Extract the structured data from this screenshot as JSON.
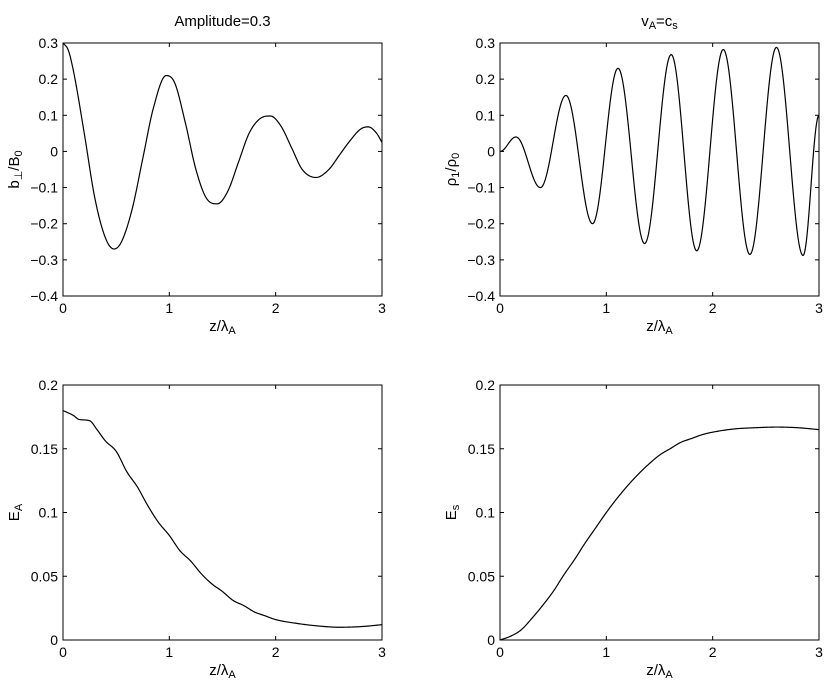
{
  "chart_data": [
    {
      "type": "line",
      "panel": "top-left",
      "title": "Amplitude=0.3",
      "xlabel": {
        "base": "z/λ",
        "sub": "A"
      },
      "ylabel": {
        "parts": [
          {
            "t": "b"
          },
          {
            "t": "⊥",
            "sub": true
          },
          {
            "t": "/B"
          },
          {
            "t": "0",
            "sub": true
          }
        ]
      },
      "xlim": [
        0,
        3
      ],
      "ylim": [
        -0.4,
        0.3
      ],
      "xticks": [
        0,
        1,
        2,
        3
      ],
      "yticks": [
        -0.4,
        -0.3,
        -0.2,
        -0.1,
        0,
        0.1,
        0.2,
        0.3
      ],
      "xtick_labels": [
        "0",
        "1",
        "2",
        "3"
      ],
      "ytick_labels": [
        "−0.4",
        "−0.3",
        "−0.2",
        "−0.1",
        "0",
        "0.1",
        "0.2",
        "0.3"
      ],
      "series": [
        {
          "x": [
            0,
            0.05,
            0.1,
            0.2,
            0.3,
            0.4,
            0.48,
            0.55,
            0.65,
            0.75,
            0.85,
            0.97,
            1.05,
            1.15,
            1.25,
            1.35,
            1.45,
            1.55,
            1.65,
            1.75,
            1.85,
            1.95,
            2.05,
            2.15,
            2.25,
            2.38,
            2.5,
            2.6,
            2.7,
            2.8,
            2.87,
            2.95,
            3.0
          ],
          "y": [
            0.3,
            0.28,
            0.22,
            0.05,
            -0.13,
            -0.24,
            -0.27,
            -0.25,
            -0.16,
            -0.02,
            0.12,
            0.21,
            0.19,
            0.08,
            -0.05,
            -0.13,
            -0.145,
            -0.11,
            -0.03,
            0.05,
            0.09,
            0.098,
            0.07,
            0.01,
            -0.05,
            -0.072,
            -0.05,
            -0.01,
            0.03,
            0.062,
            0.068,
            0.05,
            0.025
          ]
        }
      ]
    },
    {
      "type": "line",
      "panel": "top-right",
      "title": {
        "parts": [
          {
            "t": "v"
          },
          {
            "t": "A",
            "sub": true
          },
          {
            "t": "=c"
          },
          {
            "t": "s",
            "sub": true
          }
        ]
      },
      "xlabel": {
        "base": "z/λ",
        "sub": "A"
      },
      "ylabel": {
        "parts": [
          {
            "t": "ρ"
          },
          {
            "t": "1",
            "sub": true
          },
          {
            "t": "/ρ"
          },
          {
            "t": "0",
            "sub": true
          }
        ]
      },
      "xlim": [
        0,
        3
      ],
      "ylim": [
        -0.4,
        0.3
      ],
      "xticks": [
        0,
        1,
        2,
        3
      ],
      "yticks": [
        -0.4,
        -0.3,
        -0.2,
        -0.1,
        0,
        0.1,
        0.2,
        0.3
      ],
      "xtick_labels": [
        "0",
        "1",
        "2",
        "3"
      ],
      "ytick_labels": [
        "−0.4",
        "−0.3",
        "−0.2",
        "−0.1",
        "0",
        "0.1",
        "0.2",
        "0.3"
      ],
      "extrema": [
        [
          0.0,
          0.0
        ],
        [
          0.15,
          0.04
        ],
        [
          0.38,
          -0.1
        ],
        [
          0.62,
          0.155
        ],
        [
          0.87,
          -0.2
        ],
        [
          1.11,
          0.23
        ],
        [
          1.36,
          -0.255
        ],
        [
          1.61,
          0.268
        ],
        [
          1.85,
          -0.275
        ],
        [
          2.1,
          0.282
        ],
        [
          2.35,
          -0.285
        ],
        [
          2.6,
          0.288
        ],
        [
          2.85,
          -0.288
        ],
        [
          3.0,
          0.1
        ]
      ]
    },
    {
      "type": "line",
      "panel": "bottom-left",
      "title": "",
      "xlabel": {
        "base": "z/λ",
        "sub": "A"
      },
      "ylabel": {
        "parts": [
          {
            "t": "E"
          },
          {
            "t": "A",
            "sub": true
          }
        ]
      },
      "xlim": [
        0,
        3
      ],
      "ylim": [
        0,
        0.2
      ],
      "xticks": [
        0,
        1,
        2,
        3
      ],
      "yticks": [
        0,
        0.05,
        0.1,
        0.15,
        0.2
      ],
      "xtick_labels": [
        "0",
        "1",
        "2",
        "3"
      ],
      "ytick_labels": [
        "0",
        "0.05",
        "0.1",
        "0.15",
        "0.2"
      ],
      "series": [
        {
          "x": [
            0,
            0.1,
            0.15,
            0.25,
            0.32,
            0.4,
            0.5,
            0.6,
            0.7,
            0.8,
            0.9,
            1.0,
            1.1,
            1.2,
            1.3,
            1.4,
            1.5,
            1.6,
            1.7,
            1.8,
            1.9,
            2.0,
            2.2,
            2.4,
            2.6,
            2.8,
            3.0
          ],
          "y": [
            0.18,
            0.176,
            0.173,
            0.172,
            0.165,
            0.156,
            0.148,
            0.132,
            0.12,
            0.105,
            0.092,
            0.082,
            0.07,
            0.062,
            0.052,
            0.044,
            0.038,
            0.031,
            0.027,
            0.022,
            0.019,
            0.016,
            0.013,
            0.011,
            0.01,
            0.0105,
            0.012
          ]
        }
      ]
    },
    {
      "type": "line",
      "panel": "bottom-right",
      "title": "",
      "xlabel": {
        "base": "z/λ",
        "sub": "A"
      },
      "ylabel": {
        "parts": [
          {
            "t": "E"
          },
          {
            "t": "s",
            "sub": true
          }
        ]
      },
      "xlim": [
        0,
        3
      ],
      "ylim": [
        0,
        0.2
      ],
      "xticks": [
        0,
        1,
        2,
        3
      ],
      "yticks": [
        0,
        0.05,
        0.1,
        0.15,
        0.2
      ],
      "xtick_labels": [
        "0",
        "1",
        "2",
        "3"
      ],
      "ytick_labels": [
        "0",
        "0.05",
        "0.1",
        "0.15",
        "0.2"
      ],
      "series": [
        {
          "x": [
            0,
            0.1,
            0.2,
            0.3,
            0.4,
            0.5,
            0.6,
            0.7,
            0.8,
            0.9,
            1.0,
            1.1,
            1.2,
            1.3,
            1.4,
            1.5,
            1.6,
            1.7,
            1.8,
            1.9,
            2.0,
            2.2,
            2.4,
            2.6,
            2.8,
            3.0
          ],
          "y": [
            0,
            0.003,
            0.008,
            0.017,
            0.027,
            0.038,
            0.051,
            0.063,
            0.076,
            0.088,
            0.1,
            0.111,
            0.121,
            0.13,
            0.138,
            0.145,
            0.15,
            0.155,
            0.158,
            0.161,
            0.163,
            0.1655,
            0.1665,
            0.167,
            0.1665,
            0.165
          ]
        }
      ]
    }
  ]
}
